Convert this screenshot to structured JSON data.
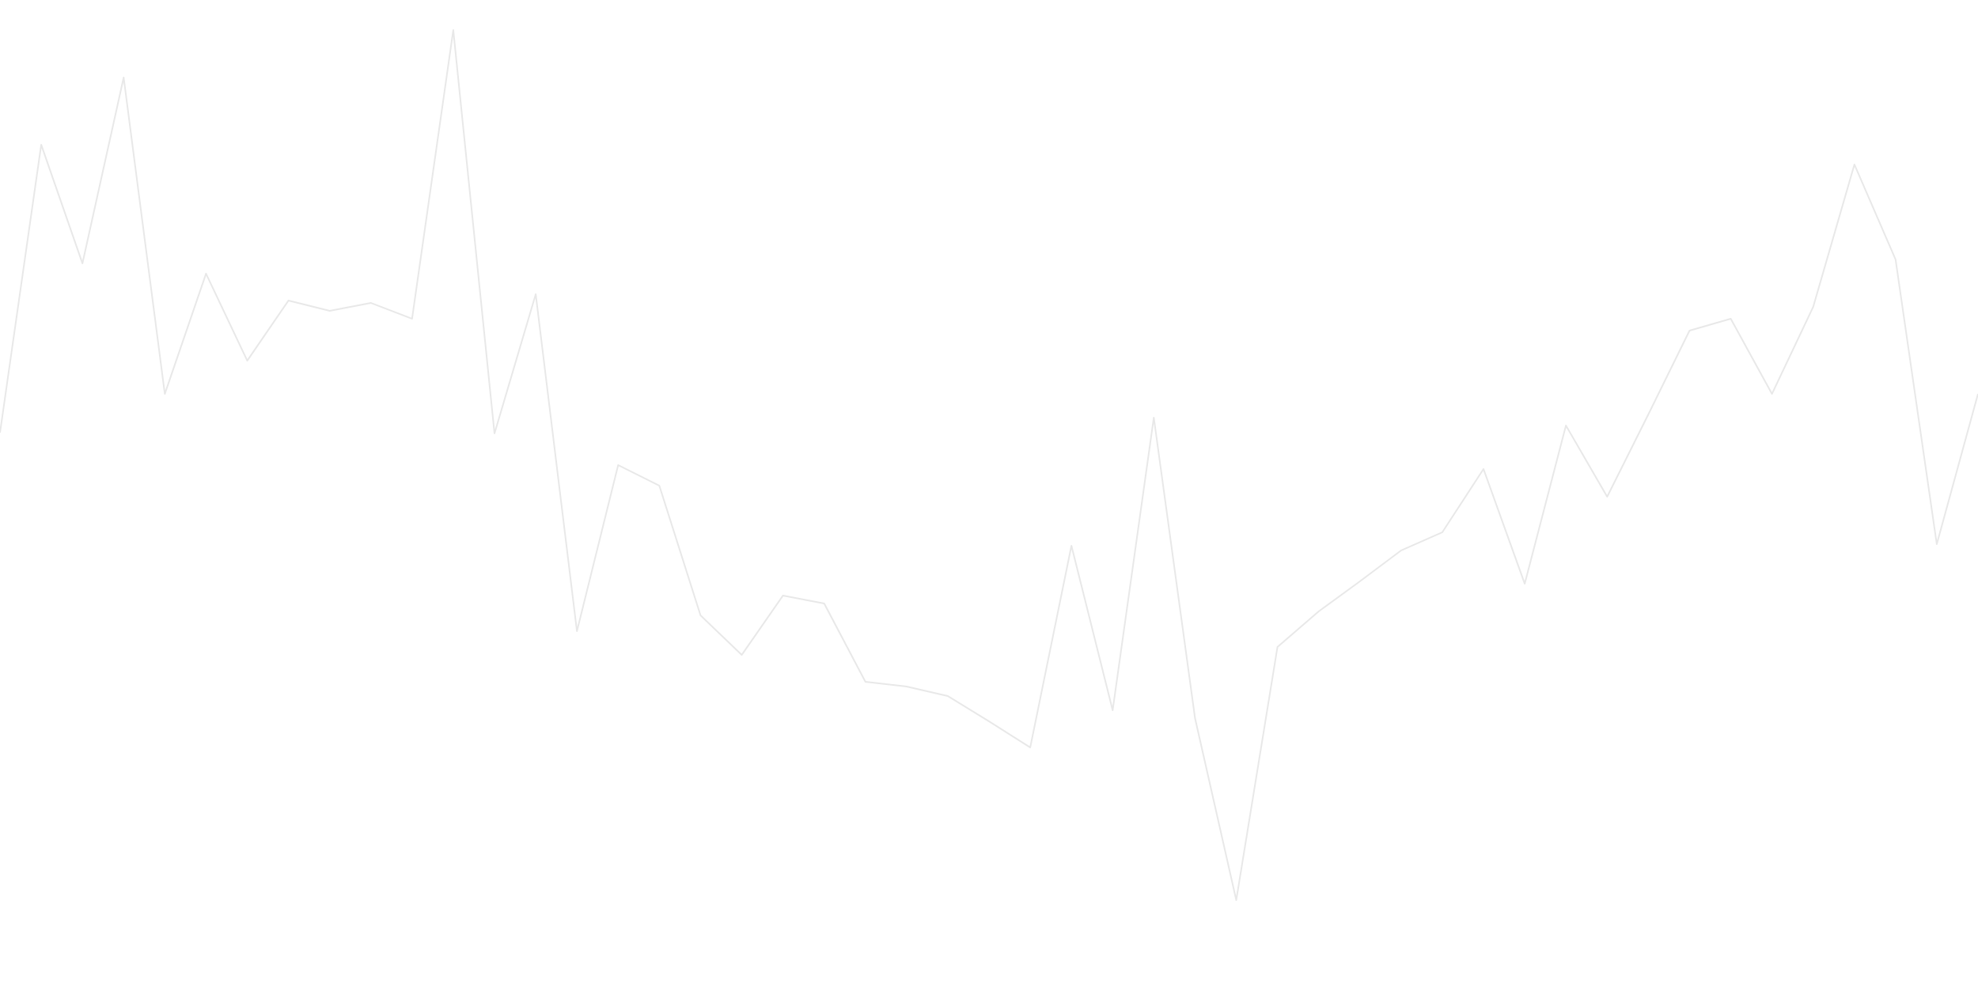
{
  "chart_data": {
    "type": "line",
    "x": [
      0,
      1,
      2,
      3,
      4,
      5,
      6,
      7,
      8,
      9,
      10,
      11,
      12,
      13,
      14,
      15,
      16,
      17,
      18,
      19,
      20,
      21,
      22,
      23,
      24,
      25,
      26,
      27,
      28,
      29,
      30,
      31,
      32,
      33,
      34,
      35,
      36,
      37,
      38,
      39,
      40,
      41,
      42,
      43,
      44,
      45,
      46,
      47,
      48
    ],
    "series": [
      {
        "values": [
          711,
          1075,
          925,
          1160,
          760,
          912,
          802,
          878,
          865,
          875,
          855,
          1220,
          710,
          886,
          460,
          670,
          644,
          480,
          430,
          505,
          495,
          396,
          390,
          378,
          346,
          313,
          568,
          360,
          730,
          350,
          120,
          440,
          485,
          523,
          562,
          585,
          665,
          520,
          720,
          630,
          734,
          840,
          855,
          760,
          870,
          1050,
          930,
          570,
          760
        ]
      }
    ],
    "xlim": [
      0,
      48
    ],
    "ylim": [
      0,
      1258
    ],
    "grid": false,
    "legend": "none",
    "line_color": "#e8e8e8",
    "background": "#ffffff"
  }
}
